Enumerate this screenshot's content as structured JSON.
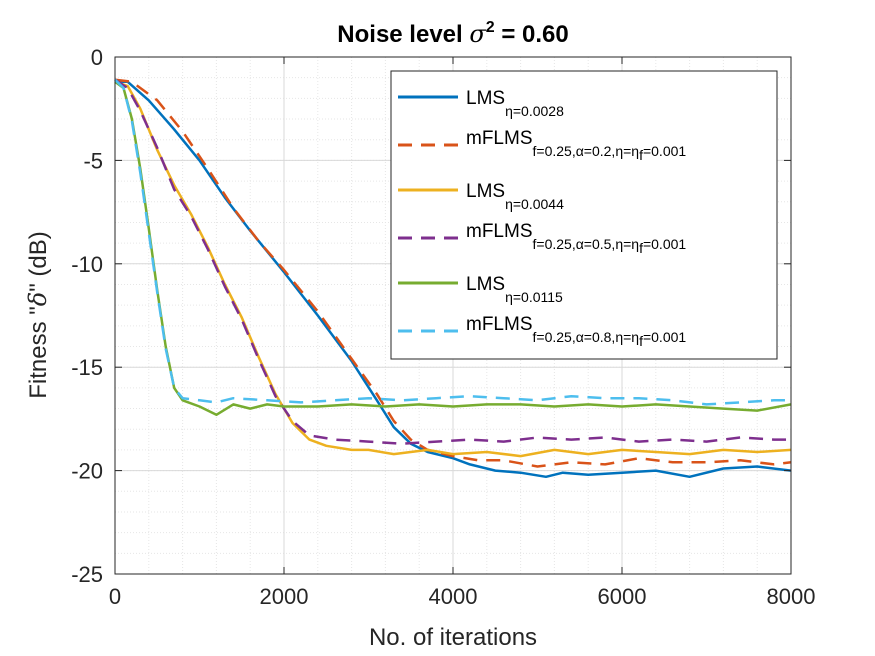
{
  "chart_data": {
    "type": "line",
    "title": {
      "prefix": "Noise level ",
      "sigma": "σ",
      "sup": "2",
      "suffix": " = 0.60"
    },
    "xlabel": "No. of iterations",
    "ylabel": {
      "prefix": "Fitness \"",
      "delta": "δ",
      "suffix": "\" (dB)"
    },
    "xlim": [
      0,
      8000
    ],
    "ylim": [
      -25,
      0
    ],
    "xticks": [
      0,
      2000,
      4000,
      6000,
      8000
    ],
    "xtick_labels": [
      "0",
      "2000",
      "4000",
      "6000",
      "8000"
    ],
    "yticks": [
      0,
      -5,
      -10,
      -15,
      -20,
      -25
    ],
    "ytick_labels": [
      "0",
      "-5",
      "-10",
      "-15",
      "-20",
      "-25"
    ],
    "grid": true,
    "minor_grid": true,
    "legend_position": "top-right",
    "series": [
      {
        "name": "LMS",
        "sub": "η=0.0028",
        "color": "#0072BD",
        "dash": "solid",
        "points": [
          [
            0,
            -1.2
          ],
          [
            150,
            -1.2
          ],
          [
            400,
            -2.1
          ],
          [
            700,
            -3.5
          ],
          [
            1000,
            -5.0
          ],
          [
            1300,
            -6.8
          ],
          [
            1600,
            -8.4
          ],
          [
            2000,
            -10.4
          ],
          [
            2400,
            -12.5
          ],
          [
            2800,
            -14.7
          ],
          [
            3100,
            -16.6
          ],
          [
            3300,
            -17.9
          ],
          [
            3500,
            -18.7
          ],
          [
            3700,
            -19.1
          ],
          [
            4000,
            -19.4
          ],
          [
            4200,
            -19.7
          ],
          [
            4500,
            -20.0
          ],
          [
            4800,
            -20.1
          ],
          [
            5100,
            -20.3
          ],
          [
            5300,
            -20.1
          ],
          [
            5600,
            -20.2
          ],
          [
            6000,
            -20.1
          ],
          [
            6400,
            -20.0
          ],
          [
            6800,
            -20.3
          ],
          [
            7200,
            -19.9
          ],
          [
            7600,
            -19.8
          ],
          [
            8000,
            -20.0
          ]
        ]
      },
      {
        "name": "mFLMS",
        "sub": "f=0.25,α=0.2,η=η",
        "sub_tail": "f",
        "sub_end": "=0.001",
        "color": "#D95319",
        "dash": "dashed",
        "points": [
          [
            0,
            -1.1
          ],
          [
            200,
            -1.2
          ],
          [
            500,
            -2.1
          ],
          [
            800,
            -3.6
          ],
          [
            1100,
            -5.4
          ],
          [
            1400,
            -7.3
          ],
          [
            1700,
            -8.9
          ],
          [
            2000,
            -10.3
          ],
          [
            2400,
            -12.3
          ],
          [
            2800,
            -14.6
          ],
          [
            3100,
            -16.3
          ],
          [
            3300,
            -17.6
          ],
          [
            3500,
            -18.5
          ],
          [
            3700,
            -19.0
          ],
          [
            4000,
            -19.3
          ],
          [
            4300,
            -19.5
          ],
          [
            4600,
            -19.5
          ],
          [
            5000,
            -19.8
          ],
          [
            5400,
            -19.6
          ],
          [
            5800,
            -19.7
          ],
          [
            6200,
            -19.4
          ],
          [
            6600,
            -19.6
          ],
          [
            7000,
            -19.6
          ],
          [
            7400,
            -19.5
          ],
          [
            7800,
            -19.7
          ],
          [
            8000,
            -19.6
          ]
        ]
      },
      {
        "name": "LMS",
        "sub": "η=0.0044",
        "color": "#EDB120",
        "dash": "solid",
        "points": [
          [
            0,
            -1.2
          ],
          [
            150,
            -1.4
          ],
          [
            300,
            -2.5
          ],
          [
            500,
            -4.5
          ],
          [
            700,
            -6.2
          ],
          [
            900,
            -7.6
          ],
          [
            1100,
            -9.2
          ],
          [
            1300,
            -11.0
          ],
          [
            1500,
            -12.6
          ],
          [
            1700,
            -14.5
          ],
          [
            1900,
            -16.3
          ],
          [
            2100,
            -17.7
          ],
          [
            2300,
            -18.5
          ],
          [
            2500,
            -18.8
          ],
          [
            2800,
            -19.0
          ],
          [
            3000,
            -19.0
          ],
          [
            3300,
            -19.2
          ],
          [
            3700,
            -19.0
          ],
          [
            4000,
            -19.2
          ],
          [
            4400,
            -19.1
          ],
          [
            4800,
            -19.3
          ],
          [
            5200,
            -19.0
          ],
          [
            5600,
            -19.2
          ],
          [
            6000,
            -19.0
          ],
          [
            6400,
            -19.1
          ],
          [
            6800,
            -19.2
          ],
          [
            7200,
            -19.0
          ],
          [
            7600,
            -19.1
          ],
          [
            8000,
            -19.0
          ]
        ]
      },
      {
        "name": "mFLMS",
        "sub": "f=0.25,α=0.5,η=η",
        "sub_tail": "f",
        "sub_end": "=0.001",
        "color": "#7E2F8E",
        "dash": "dashed",
        "points": [
          [
            0,
            -1.1
          ],
          [
            150,
            -1.5
          ],
          [
            300,
            -2.6
          ],
          [
            500,
            -4.4
          ],
          [
            700,
            -6.4
          ],
          [
            900,
            -7.7
          ],
          [
            1100,
            -9.3
          ],
          [
            1300,
            -11.1
          ],
          [
            1500,
            -12.7
          ],
          [
            1700,
            -14.6
          ],
          [
            1900,
            -16.4
          ],
          [
            2100,
            -17.6
          ],
          [
            2300,
            -18.3
          ],
          [
            2600,
            -18.5
          ],
          [
            3000,
            -18.6
          ],
          [
            3400,
            -18.7
          ],
          [
            3800,
            -18.6
          ],
          [
            4200,
            -18.5
          ],
          [
            4600,
            -18.6
          ],
          [
            5000,
            -18.4
          ],
          [
            5400,
            -18.5
          ],
          [
            5800,
            -18.4
          ],
          [
            6200,
            -18.6
          ],
          [
            6600,
            -18.5
          ],
          [
            7000,
            -18.6
          ],
          [
            7400,
            -18.4
          ],
          [
            7800,
            -18.5
          ],
          [
            8000,
            -18.5
          ]
        ]
      },
      {
        "name": "LMS",
        "sub": "η=0.0115",
        "color": "#77AC30",
        "dash": "solid",
        "points": [
          [
            0,
            -1.2
          ],
          [
            100,
            -1.5
          ],
          [
            200,
            -3.0
          ],
          [
            300,
            -5.4
          ],
          [
            400,
            -8.3
          ],
          [
            500,
            -11.3
          ],
          [
            600,
            -14.0
          ],
          [
            700,
            -16.0
          ],
          [
            800,
            -16.6
          ],
          [
            1000,
            -16.9
          ],
          [
            1200,
            -17.3
          ],
          [
            1400,
            -16.8
          ],
          [
            1600,
            -17.0
          ],
          [
            1800,
            -16.8
          ],
          [
            2000,
            -16.9
          ],
          [
            2400,
            -16.9
          ],
          [
            2800,
            -16.8
          ],
          [
            3200,
            -16.9
          ],
          [
            3600,
            -16.8
          ],
          [
            4000,
            -16.9
          ],
          [
            4400,
            -16.8
          ],
          [
            4800,
            -16.8
          ],
          [
            5200,
            -16.9
          ],
          [
            5600,
            -16.8
          ],
          [
            6000,
            -16.9
          ],
          [
            6400,
            -16.8
          ],
          [
            6800,
            -16.9
          ],
          [
            7200,
            -17.0
          ],
          [
            7600,
            -17.1
          ],
          [
            8000,
            -16.8
          ]
        ]
      },
      {
        "name": "mFLMS",
        "sub": "f=0.25,α=0.8,η=η",
        "sub_tail": "f",
        "sub_end": "=0.001",
        "color": "#4DBEEE",
        "dash": "dashed",
        "points": [
          [
            0,
            -1.1
          ],
          [
            100,
            -1.5
          ],
          [
            200,
            -3.1
          ],
          [
            300,
            -5.6
          ],
          [
            400,
            -8.5
          ],
          [
            500,
            -11.4
          ],
          [
            600,
            -14.1
          ],
          [
            700,
            -16.0
          ],
          [
            800,
            -16.5
          ],
          [
            1000,
            -16.6
          ],
          [
            1200,
            -16.7
          ],
          [
            1400,
            -16.5
          ],
          [
            1800,
            -16.6
          ],
          [
            2200,
            -16.7
          ],
          [
            2600,
            -16.6
          ],
          [
            3000,
            -16.5
          ],
          [
            3400,
            -16.6
          ],
          [
            3800,
            -16.5
          ],
          [
            4200,
            -16.4
          ],
          [
            4600,
            -16.5
          ],
          [
            5000,
            -16.6
          ],
          [
            5400,
            -16.4
          ],
          [
            5800,
            -16.5
          ],
          [
            6200,
            -16.5
          ],
          [
            6600,
            -16.6
          ],
          [
            7000,
            -16.8
          ],
          [
            7400,
            -16.7
          ],
          [
            7800,
            -16.6
          ],
          [
            8000,
            -16.6
          ]
        ]
      }
    ]
  }
}
